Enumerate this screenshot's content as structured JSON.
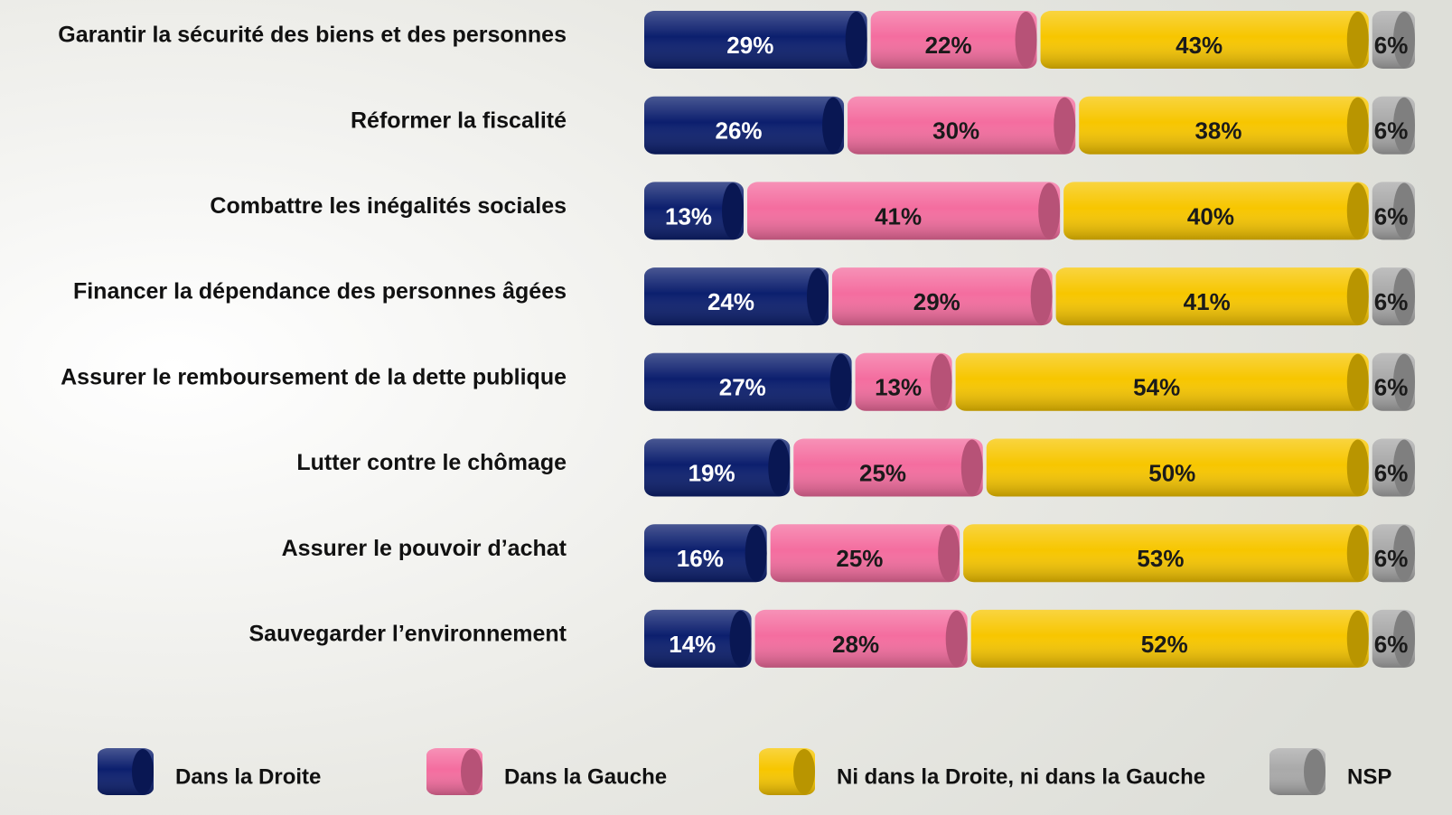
{
  "chart_data": {
    "type": "stacked-bar-horizontal",
    "categories": [
      "Garantir la sécurité des biens et des personnes",
      "Réformer la fiscalité",
      "Combattre les inégalités sociales",
      "Financer la dépendance des personnes âgées",
      "Assurer le remboursement de la dette publique",
      "Lutter contre le chômage",
      "Assurer le pouvoir d’achat",
      "Sauvegarder l’environnement"
    ],
    "series": [
      {
        "name": "Dans la Droite",
        "color": "#0c1f6e",
        "values": [
          29,
          26,
          13,
          24,
          27,
          19,
          16,
          14
        ],
        "value_labels": [
          "29%",
          "26%",
          "13%",
          "24%",
          "27%",
          "19%",
          "16%",
          "14%"
        ]
      },
      {
        "name": "Dans la Gauche",
        "color": "#f46d9f",
        "values": [
          22,
          30,
          41,
          29,
          13,
          25,
          25,
          28
        ],
        "value_labels": [
          "22%",
          "30%",
          "41%",
          "29%",
          "13%",
          "25%",
          "25%",
          "28%"
        ]
      },
      {
        "name": "Ni dans la Droite, ni dans la Gauche",
        "color": "#f7c600",
        "values": [
          43,
          38,
          40,
          41,
          54,
          50,
          53,
          52
        ],
        "value_labels": [
          "43%",
          "38%",
          "40%",
          "41%",
          "54%",
          "50%",
          "53%",
          "52%"
        ]
      },
      {
        "name": "NSP",
        "color": "#a9a9a9",
        "values": [
          6,
          6,
          6,
          6,
          6,
          6,
          6,
          6
        ],
        "value_labels": [
          "6%",
          "6%",
          "6%",
          "6%",
          "6%",
          "6%",
          "6%",
          "6%"
        ]
      }
    ],
    "xlim": [
      0,
      100
    ],
    "legend": "bottom"
  }
}
